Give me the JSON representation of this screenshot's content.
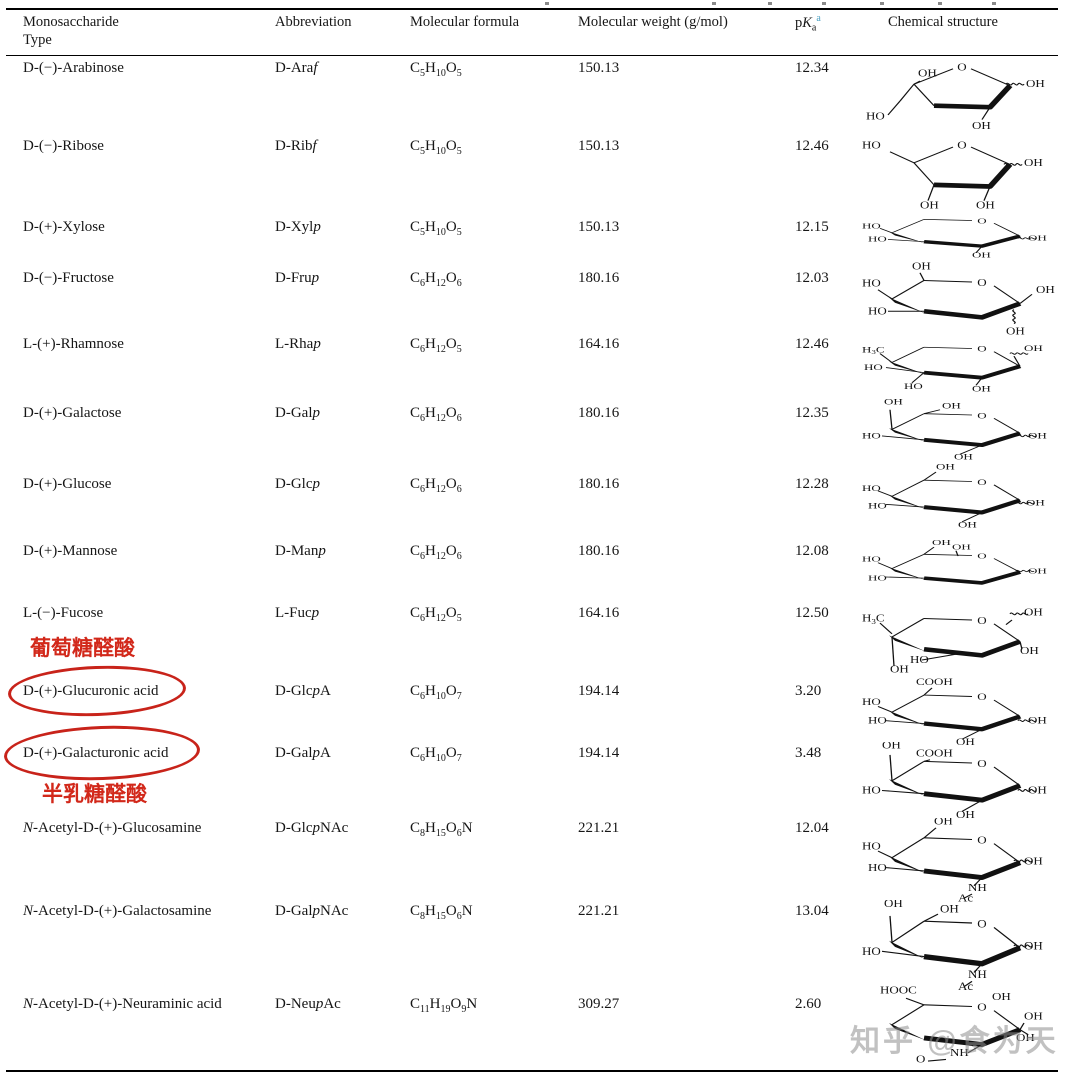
{
  "header": {
    "col1_line1": "Monosaccharide",
    "col1_line2": "Type",
    "col2": "Abbreviation",
    "col3": "Molecular formula",
    "col4": "Molecular weight (g/mol)",
    "pka": {
      "base": "p",
      "k": "K",
      "sub": "a",
      "sup": "a"
    },
    "col6": "Chemical structure",
    "sup_color": "#4ba0c2"
  },
  "annotations": {
    "label_top": "葡萄糖醛酸",
    "label_bottom": "半乳糖醛酸",
    "red_color": "#d2281a"
  },
  "watermark": "知乎 @食为天",
  "rows": [
    {
      "name": "D-(−)-Arabinose",
      "abbr": "D-Ara*f*",
      "formula": "C5H10O5",
      "weight": "150.13",
      "pka": "12.34",
      "structure": {
        "kind": "arabinofuranose",
        "labels": [
          "O",
          "OH",
          "OH",
          "HO",
          "OH"
        ]
      }
    },
    {
      "name": "D-(−)-Ribose",
      "abbr": "D-Rib*f*",
      "formula": "C5H10O5",
      "weight": "150.13",
      "pka": "12.46",
      "structure": {
        "kind": "ribofuranose",
        "labels": [
          "HO",
          "O",
          "OH",
          "OH",
          "OH"
        ]
      }
    },
    {
      "name": "D-(+)-Xylose",
      "abbr": "D-Xyl*p*",
      "formula": "C5H10O5",
      "weight": "150.13",
      "pka": "12.15",
      "structure": {
        "kind": "xylopyranose",
        "labels": [
          "HO",
          "HO",
          "O",
          "OH",
          "OH"
        ]
      }
    },
    {
      "name": "D-(−)-Fructose",
      "abbr": "D-Fru*p*",
      "formula": "C6H12O6",
      "weight": "180.16",
      "pka": "12.03",
      "structure": {
        "kind": "fructopyranose",
        "labels": [
          "HO",
          "OH",
          "O",
          "OH",
          "HO",
          "OH"
        ]
      }
    },
    {
      "name": "L-(+)-Rhamnose",
      "abbr": "L-Rha*p*",
      "formula": "C6H12O5",
      "weight": "164.16",
      "pka": "12.46",
      "structure": {
        "kind": "rhamnopyranose",
        "labels": [
          "H3C",
          "O",
          "OH",
          "HO",
          "HO",
          "OH"
        ]
      }
    },
    {
      "name": "D-(+)-Galactose",
      "abbr": "D-Gal*p*",
      "formula": "C6H12O6",
      "weight": "180.16",
      "pka": "12.35",
      "structure": {
        "kind": "galactopyranose",
        "labels": [
          "OH",
          "OH",
          "O",
          "HO",
          "OH",
          "OH"
        ]
      }
    },
    {
      "name": "D-(+)-Glucose",
      "abbr": "D-Glc*p*",
      "formula": "C6H12O6",
      "weight": "180.16",
      "pka": "12.28",
      "structure": {
        "kind": "glucopyranose",
        "labels": [
          "OH",
          "O",
          "HO",
          "HO",
          "OH",
          "OH"
        ]
      }
    },
    {
      "name": "D-(+)-Mannose",
      "abbr": "D-Man*p*",
      "formula": "C6H12O6",
      "weight": "180.16",
      "pka": "12.08",
      "structure": {
        "kind": "mannopyranose",
        "labels": [
          "OH",
          "HO",
          "OH",
          "O",
          "HO",
          "OH"
        ]
      }
    },
    {
      "name": "L-(−)-Fucose",
      "abbr": "L-Fuc*p*",
      "formula": "C6H12O5",
      "weight": "164.16",
      "pka": "12.50",
      "structure": {
        "kind": "fucopyranose",
        "labels": [
          "OH",
          "H3C",
          "O",
          "OH",
          "HO",
          "OH"
        ]
      }
    },
    {
      "name": "D-(+)-Glucuronic acid",
      "abbr": "D-Glc*p*A",
      "formula": "C6H10O7",
      "weight": "194.14",
      "pka": "3.20",
      "circled": true,
      "structure": {
        "kind": "glucuronic-acid",
        "labels": [
          "COOH",
          "O",
          "HO",
          "HO",
          "OH",
          "OH"
        ]
      }
    },
    {
      "name": "D-(+)-Galacturonic acid",
      "abbr": "D-Gal*p*A",
      "formula": "C6H10O7",
      "weight": "194.14",
      "pka": "3.48",
      "circled": true,
      "structure": {
        "kind": "galacturonic-acid",
        "labels": [
          "OH",
          "COOH",
          "O",
          "HO",
          "OH",
          "OH"
        ]
      }
    },
    {
      "name": "*N*-Acetyl-D-(+)-Glucosamine",
      "abbr": "D-Glc*p*NAc",
      "formula": "C8H15O6N",
      "weight": "221.21",
      "pka": "12.04",
      "structure": {
        "kind": "n-acetyl-glucosamine",
        "labels": [
          "OH",
          "O",
          "HO",
          "HO",
          "NH",
          "Ac",
          "OH"
        ]
      }
    },
    {
      "name": "*N*-Acetyl-D-(+)-Galactosamine",
      "abbr": "D-Gal*p*NAc",
      "formula": "C8H15O6N",
      "weight": "221.21",
      "pka": "13.04",
      "structure": {
        "kind": "n-acetyl-galactosamine",
        "labels": [
          "OH",
          "OH",
          "O",
          "HO",
          "NH",
          "Ac",
          "OH"
        ]
      }
    },
    {
      "name": "*N*-Acetyl-D-(+)-Neuraminic acid",
      "abbr": "D-Neu*p*Ac",
      "formula": "C11H19O9N",
      "weight": "309.27",
      "pka": "2.60",
      "structure": {
        "kind": "n-acetyl-neuraminic-acid",
        "labels": [
          "HOOC",
          "O",
          "OH",
          "OH",
          "OH",
          "NH",
          "O"
        ]
      }
    }
  ]
}
